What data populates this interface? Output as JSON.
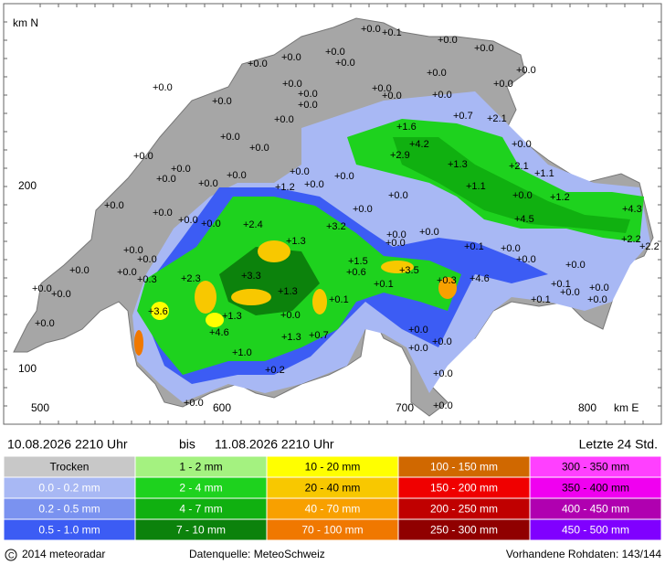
{
  "map": {
    "north_label": "km N",
    "east_label": "km E",
    "y_ticks": [
      "200",
      "100"
    ],
    "x_ticks": [
      "500",
      "600",
      "700",
      "800"
    ],
    "stations": [
      "+0.0",
      "+0.1",
      "+0.0",
      "+0.0",
      "+0.0",
      "+0.0",
      "+0.0",
      "+0.0",
      "+0.0",
      "+0.0",
      "+0.0",
      "+0.0",
      "+0.0",
      "+0.0",
      "+0.0",
      "+0.0",
      "+0.0",
      "+0.0",
      "+0.0",
      "+0.7",
      "+2.1",
      "+1.6",
      "+4.2",
      "+2.9",
      "+0.0",
      "+0.0",
      "+0.0",
      "+0.0",
      "+0.0",
      "+0.0",
      "+0.0",
      "+0.0",
      "+0.0",
      "+0.0",
      "+1.2",
      "+0.0",
      "+0.0",
      "+1.3",
      "+2.1",
      "+1.1",
      "+1.1",
      "+0.0",
      "+1.2",
      "+4.5",
      "+4.3",
      "+2.2",
      "+2.2",
      "+0.0",
      "+0.0",
      "+0.0",
      "+0.0",
      "+2.4",
      "+3.2",
      "+0.0",
      "+0.0",
      "+0.0",
      "+0.0",
      "+0.0",
      "+0.0",
      "+0.0",
      "+0.0",
      "+0.0",
      "+0.0",
      "+0.0",
      "+1.3",
      "+0.3",
      "+2.3",
      "+3.3",
      "+1.5",
      "+0.6",
      "+3.5",
      "+0.1",
      "+0.3",
      "+4.6",
      "+0.1",
      "+0.0",
      "+0.0",
      "+0.0",
      "+0.1",
      "+0.0",
      "+0.0",
      "+0.0",
      "+0.1",
      "+1.3",
      "+0.1",
      "+3.6",
      "+1.3",
      "+0.0",
      "+4.6",
      "+0.0",
      "+1.3",
      "+0.7",
      "+1.0",
      "+0.0",
      "+0.0",
      "+0.0",
      "+0.2",
      "+0.0",
      "+0.0",
      "+0.0"
    ]
  },
  "period": {
    "from": "10.08.2026 2210 Uhr",
    "separator": "bis",
    "to": "11.08.2026 2210 Uhr",
    "duration": "Letzte 24 Std."
  },
  "legend": [
    {
      "label": "Trocken",
      "color": "#c8c8c8"
    },
    {
      "label": "0.0 - 0.2 mm",
      "color": "#a8b8f4"
    },
    {
      "label": "0.2 - 0.5 mm",
      "color": "#7a92f0"
    },
    {
      "label": "0.5 - 1.0 mm",
      "color": "#3c5cf4"
    },
    {
      "label": "1 - 2 mm",
      "color": "#a4f280"
    },
    {
      "label": "2 - 4 mm",
      "color": "#1ed21e"
    },
    {
      "label": "4 - 7 mm",
      "color": "#10b010"
    },
    {
      "label": "7 - 10 mm",
      "color": "#0c820c"
    },
    {
      "label": "10 - 20 mm",
      "color": "#ffff00"
    },
    {
      "label": "20 - 40 mm",
      "color": "#f8c800"
    },
    {
      "label": "40 - 70 mm",
      "color": "#f8a000"
    },
    {
      "label": "70 - 100 mm",
      "color": "#f07800"
    },
    {
      "label": "100 - 150 mm",
      "color": "#d06800"
    },
    {
      "label": "150 - 200 mm",
      "color": "#f00000"
    },
    {
      "label": "200 - 250 mm",
      "color": "#c00000"
    },
    {
      "label": "250 - 300 mm",
      "color": "#900000"
    },
    {
      "label": "300 - 350 mm",
      "color": "#ff40ff"
    },
    {
      "label": "350 - 400 mm",
      "color": "#f000f0"
    },
    {
      "label": "400 - 450 mm",
      "color": "#b000b0"
    },
    {
      "label": "450 - 500 mm",
      "color": "#8000ff"
    }
  ],
  "footer": {
    "copyright": "2014 meteoradar",
    "source": "Datenquelle: MeteoSchweiz",
    "raw_data": "Vorhandene Rohdaten: 143/144"
  }
}
